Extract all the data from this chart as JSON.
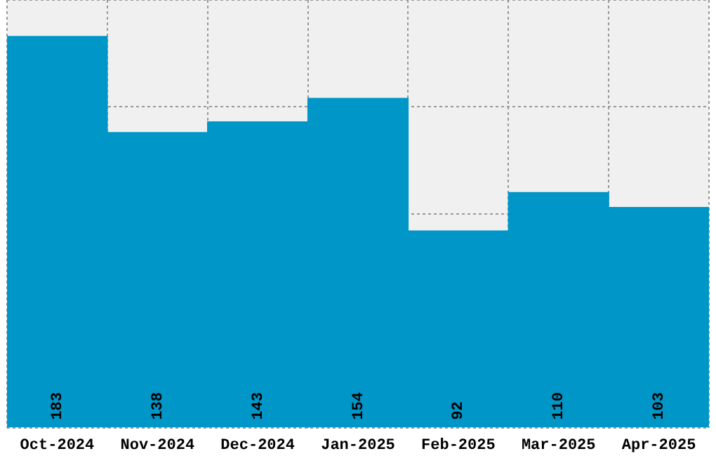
{
  "chart_data": {
    "type": "bar",
    "categories": [
      "Oct-2024",
      "Nov-2024",
      "Dec-2024",
      "Jan-2025",
      "Feb-2025",
      "Mar-2025",
      "Apr-2025"
    ],
    "values": [
      183,
      138,
      143,
      154,
      92,
      110,
      103
    ],
    "color": "#0096c8",
    "tick_labels": "x",
    "grid": true,
    "data_labels": true
  }
}
